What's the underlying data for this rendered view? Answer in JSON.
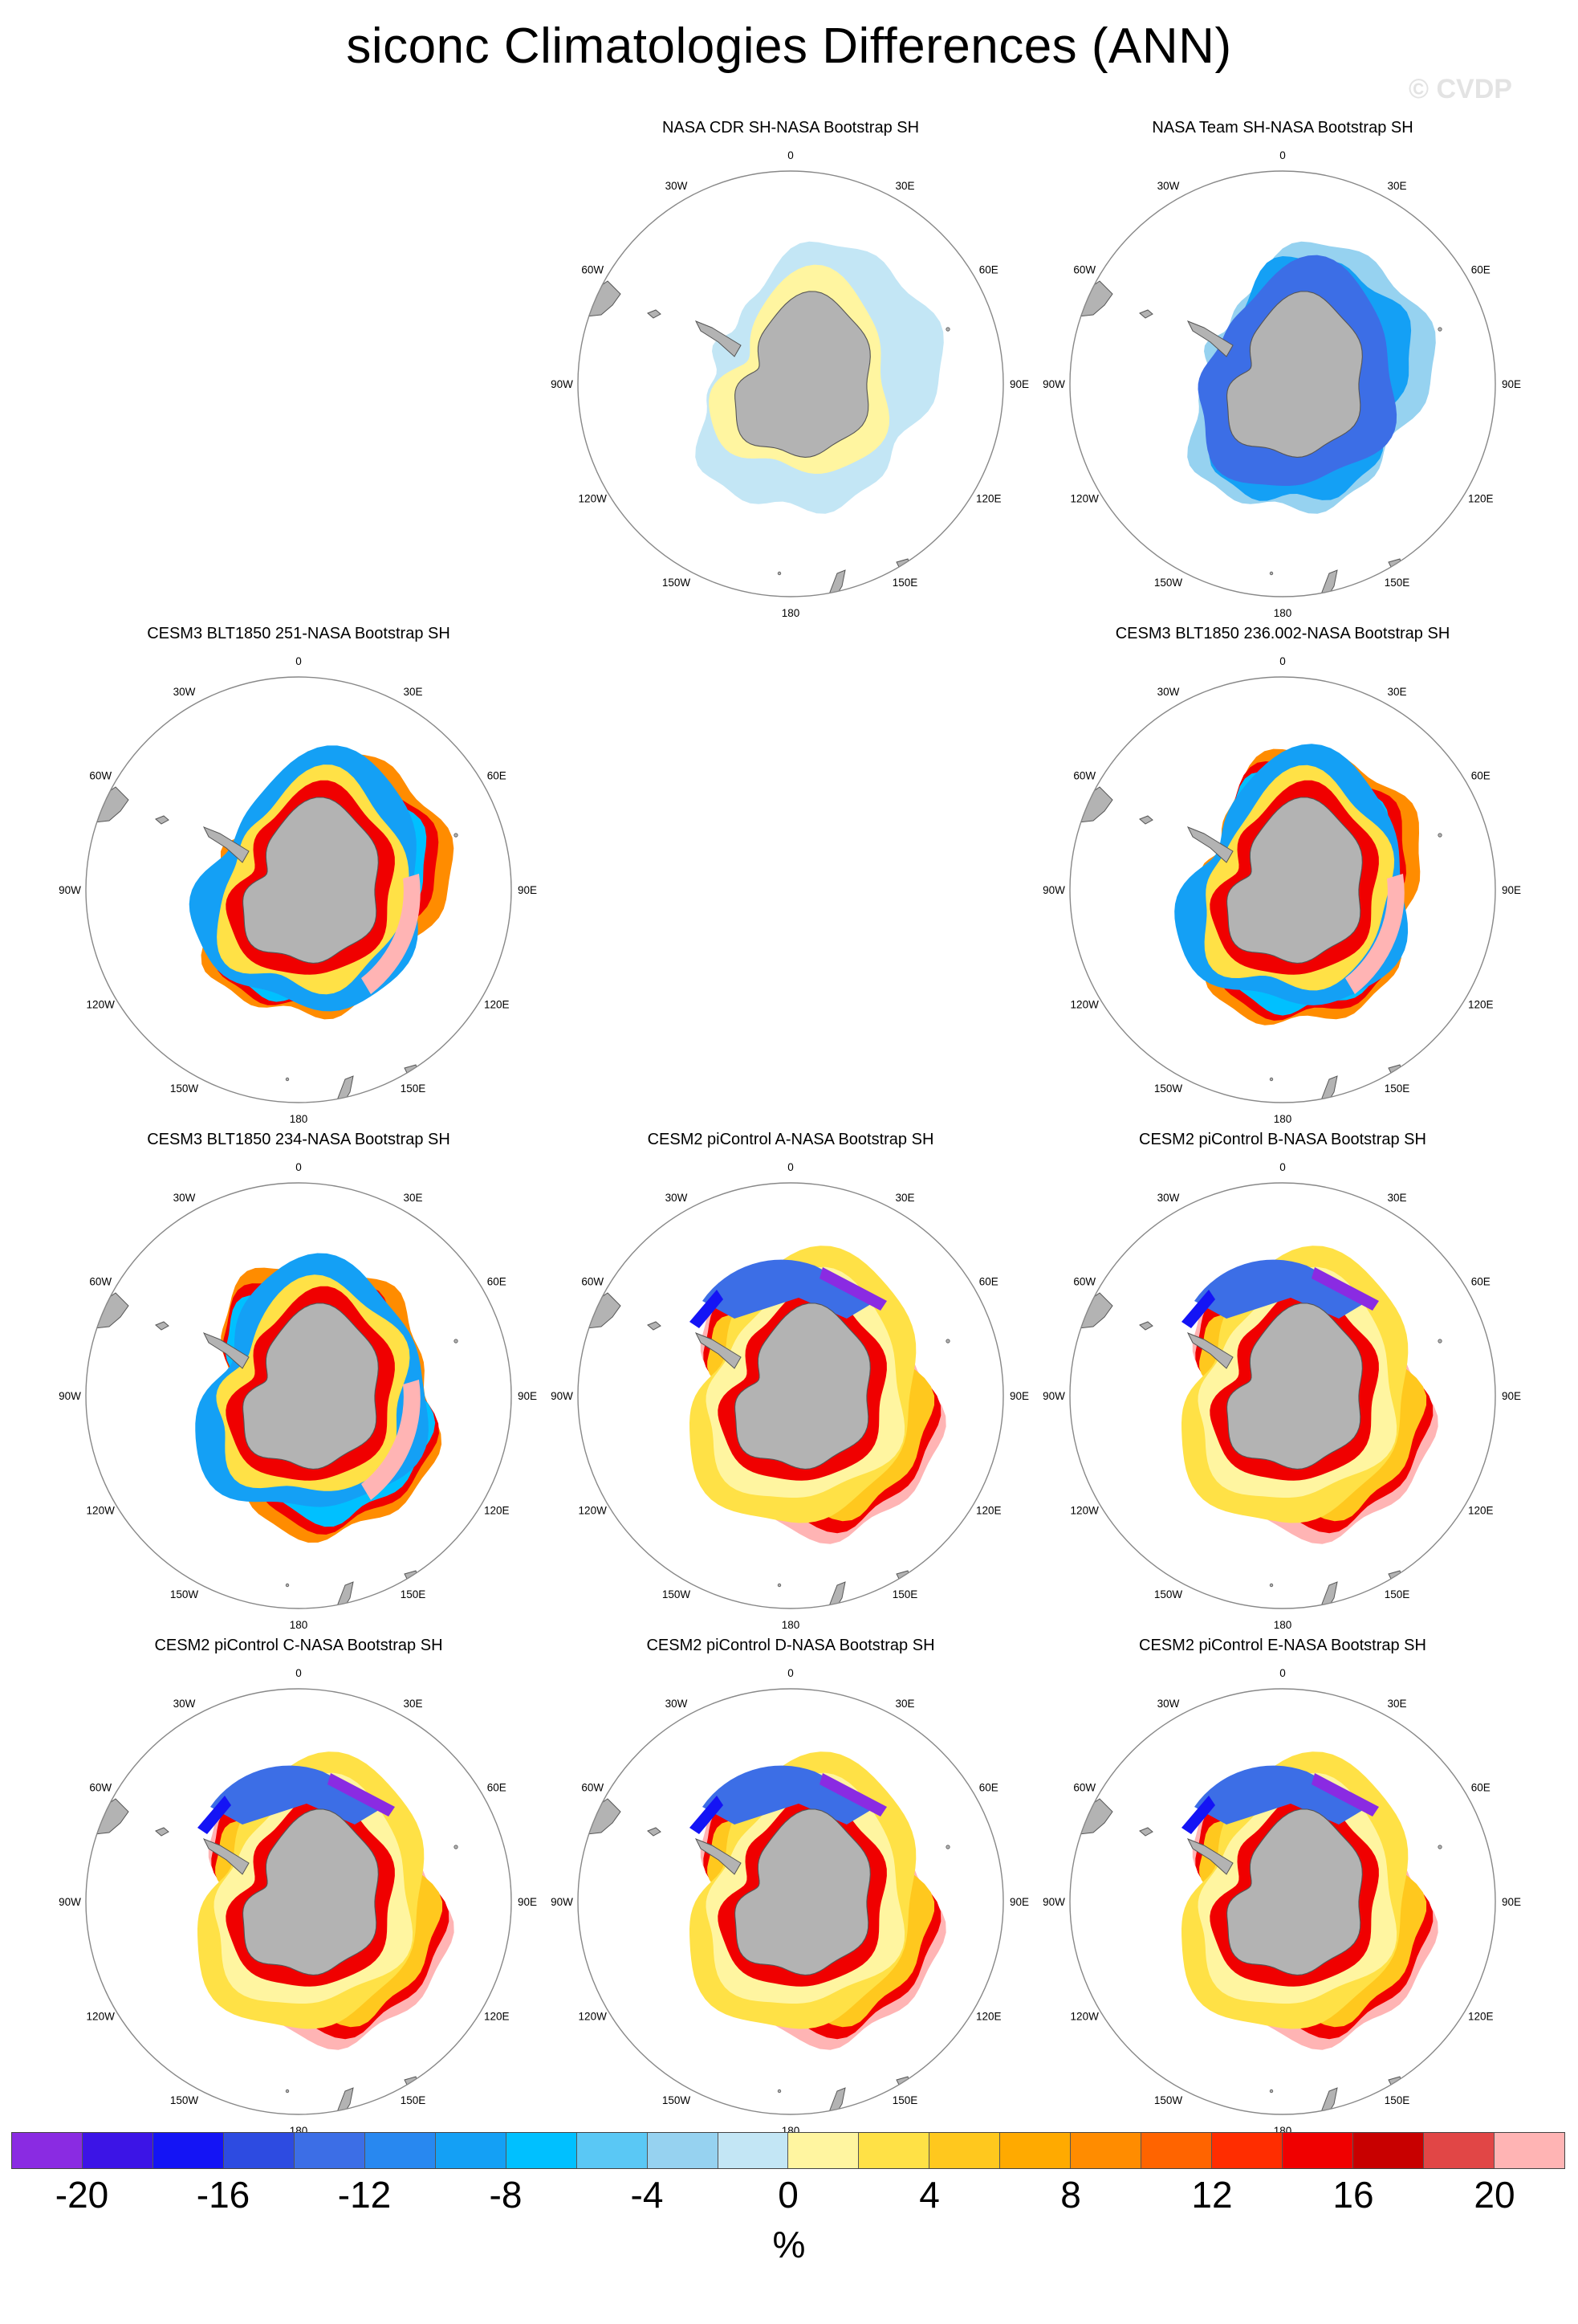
{
  "title": "siconc Climatologies Differences (ANN)",
  "watermark": "© CVDP",
  "lon_labels": [
    "0",
    "30E",
    "60E",
    "90E",
    "120E",
    "150E",
    "180",
    "150W",
    "120W",
    "90W",
    "60W",
    "30W"
  ],
  "colors": {
    "land": "#b3b3b3",
    "ocean": "#ffffff",
    "circle": "#888888"
  },
  "panels": [
    {
      "id": "cdr",
      "title": "NASA CDR SH-NASA Bootstrap SH",
      "pattern": "cdr"
    },
    {
      "id": "team",
      "title": "NASA Team SH-NASA Bootstrap SH",
      "pattern": "team"
    },
    {
      "id": "cesm3-251",
      "title": "CESM3 BLT1850 251-NASA Bootstrap SH",
      "pattern": "cesm3"
    },
    {
      "id": "cesm3-236",
      "title": "CESM3 BLT1850 236.002-NASA Bootstrap SH",
      "pattern": "cesm3b"
    },
    {
      "id": "cesm3-234",
      "title": "CESM3 BLT1850 234-NASA Bootstrap SH",
      "pattern": "cesm3c"
    },
    {
      "id": "cesm2-a",
      "title": "CESM2 piControl A-NASA Bootstrap SH",
      "pattern": "cesm2"
    },
    {
      "id": "cesm2-b",
      "title": "CESM2 piControl B-NASA Bootstrap SH",
      "pattern": "cesm2"
    },
    {
      "id": "cesm2-c",
      "title": "CESM2 piControl C-NASA Bootstrap SH",
      "pattern": "cesm2"
    },
    {
      "id": "cesm2-d",
      "title": "CESM2 piControl D-NASA Bootstrap SH",
      "pattern": "cesm2"
    },
    {
      "id": "cesm2-e",
      "title": "CESM2 piControl E-NASA Bootstrap SH",
      "pattern": "cesm2"
    }
  ],
  "colorbar": {
    "colors": [
      "#8a2be2",
      "#3c14e6",
      "#1414f5",
      "#2d4be1",
      "#3c6ee6",
      "#2888f0",
      "#14a0f5",
      "#00c0ff",
      "#5ac8f5",
      "#96d2f0",
      "#c3e6f5",
      "#fff5a0",
      "#ffe146",
      "#ffc81e",
      "#ffaa00",
      "#ff8c00",
      "#ff6400",
      "#ff2d00",
      "#f00000",
      "#c80000",
      "#e14646",
      "#ffb4b4"
    ],
    "tick_labels": [
      "-20",
      "-16",
      "-12",
      "-8",
      "-4",
      "0",
      "4",
      "8",
      "12",
      "16",
      "20"
    ],
    "unit": "%"
  }
}
